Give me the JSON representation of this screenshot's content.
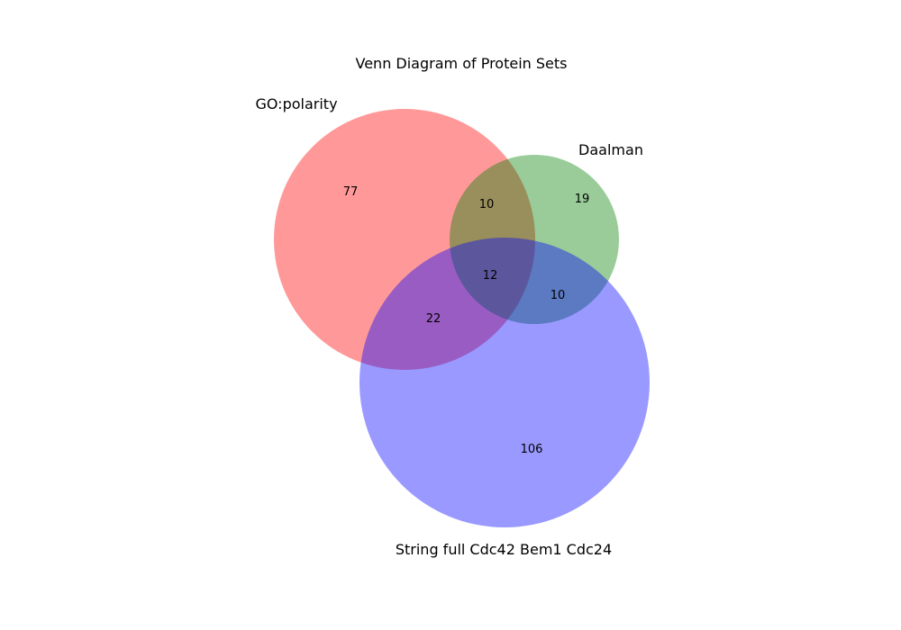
{
  "title": "Venn Diagram of Protein Sets",
  "sets": [
    {
      "key": "A",
      "label": "GO:polarity",
      "color": "#ff0000"
    },
    {
      "key": "B",
      "label": "Daalman",
      "color": "#008000"
    },
    {
      "key": "C",
      "label": "String full Cdc42 Bem1 Cdc24",
      "color": "#0000ff"
    }
  ],
  "regions": {
    "A_only": "77",
    "B_only": "19",
    "AB_only": "10",
    "ABC": "12",
    "AC_only": "22",
    "BC_only": "10",
    "C_only": "106"
  }
}
